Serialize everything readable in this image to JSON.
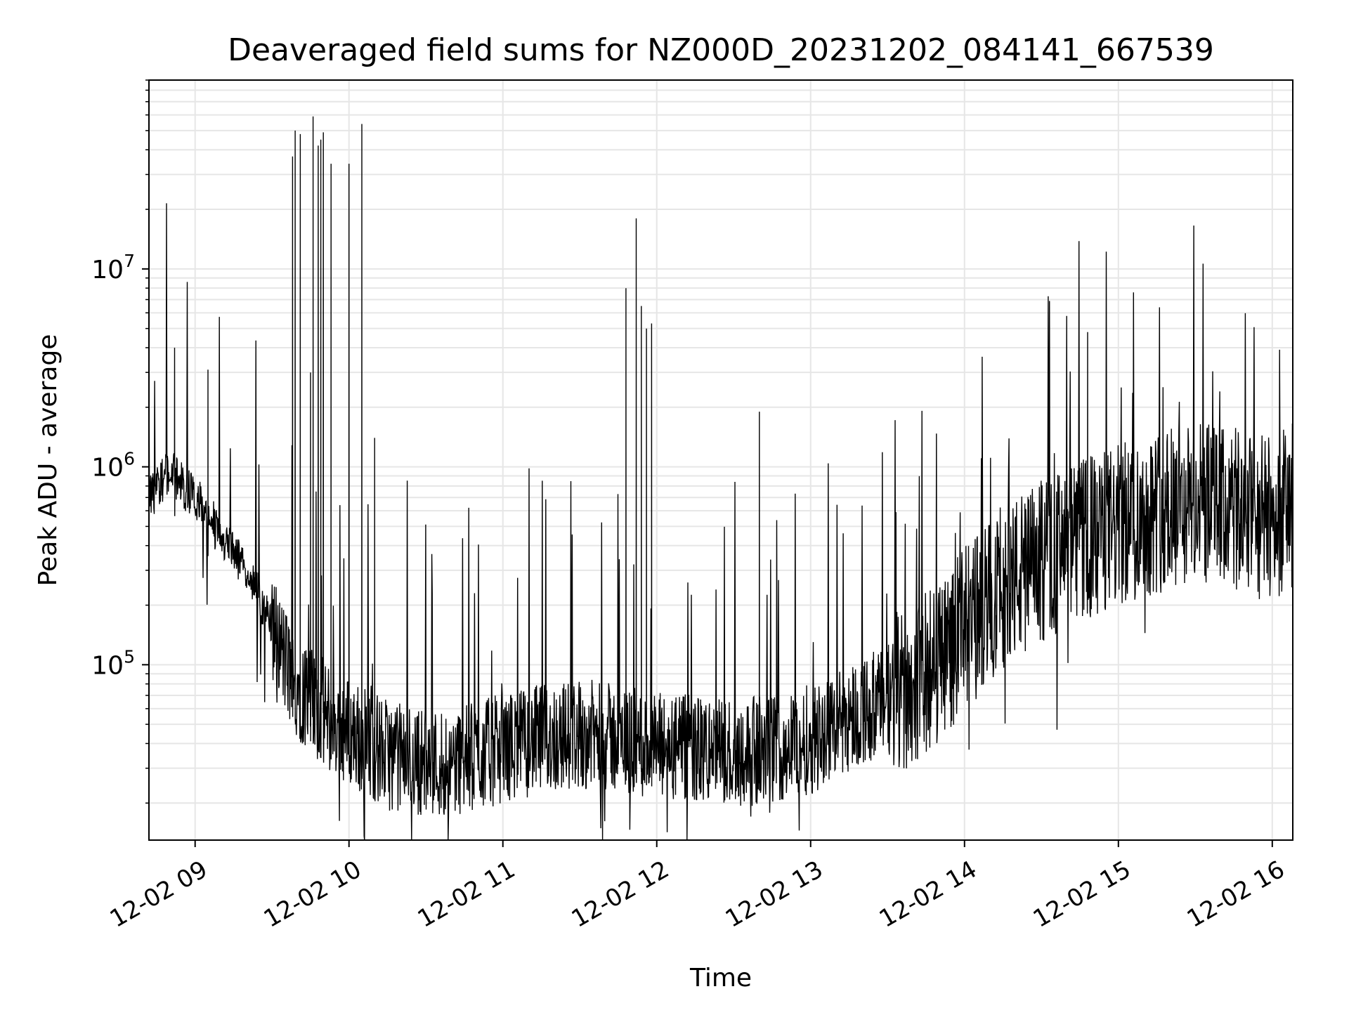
{
  "chart_data": {
    "type": "line",
    "title": "Deaveraged field sums for NZ000D_20231202_084141_667539",
    "xlabel": "Time",
    "ylabel": "Peak ADU - average",
    "y_scale": "log",
    "ylim": [
      13000,
      90000000
    ],
    "xlim": [
      "12-02 08:42",
      "12-02 16:08"
    ],
    "x_ticks": [
      "12-02 09",
      "12-02 10",
      "12-02 11",
      "12-02 12",
      "12-02 13",
      "12-02 14",
      "12-02 15",
      "12-02 16"
    ],
    "y_ticks": [
      {
        "base": "10",
        "exp": "5",
        "value": 100000
      },
      {
        "base": "10",
        "exp": "6",
        "value": 1000000
      },
      {
        "base": "10",
        "exp": "7",
        "value": 10000000
      }
    ],
    "grid": true,
    "line_color": "#000000",
    "series": [
      {
        "x": [
          "12-02 08:42",
          "12-02 08:50",
          "12-02 09:00",
          "12-02 09:10",
          "12-02 09:20",
          "12-02 09:30",
          "12-02 09:37",
          "12-02 09:45",
          "12-02 09:55",
          "12-02 10:05",
          "12-02 10:15",
          "12-02 10:25",
          "12-02 10:35",
          "12-02 10:45",
          "12-02 11:00",
          "12-02 11:15",
          "12-02 11:30",
          "12-02 11:45",
          "12-02 12:00",
          "12-02 12:15",
          "12-02 12:30",
          "12-02 12:45",
          "12-02 13:00",
          "12-02 13:15",
          "12-02 13:30",
          "12-02 13:45",
          "12-02 14:00",
          "12-02 14:15",
          "12-02 14:30",
          "12-02 14:45",
          "12-02 15:00",
          "12-02 15:15",
          "12-02 15:30",
          "12-02 15:45",
          "12-02 16:00",
          "12-02 16:08"
        ],
        "values": [
          700000,
          950000,
          700000,
          450000,
          300000,
          160000,
          90000,
          65000,
          50000,
          42000,
          35000,
          33000,
          32000,
          33000,
          38000,
          42000,
          45000,
          42000,
          38000,
          37000,
          36000,
          37000,
          42000,
          55000,
          65000,
          90000,
          150000,
          250000,
          330000,
          420000,
          500000,
          600000,
          650000,
          600000,
          550000,
          650000
        ]
      }
    ],
    "spikes": [
      {
        "x": "12-02 08:52",
        "value": 4000000
      },
      {
        "x": "12-02 09:05",
        "value": 3100000
      },
      {
        "x": "12-02 09:38",
        "value": 37000000
      },
      {
        "x": "12-02 09:39",
        "value": 50000000
      },
      {
        "x": "12-02 09:41",
        "value": 48000000
      },
      {
        "x": "12-02 09:45",
        "value": 3000000
      },
      {
        "x": "12-02 09:46",
        "value": 59000000
      },
      {
        "x": "12-02 09:48",
        "value": 42000000
      },
      {
        "x": "12-02 09:49",
        "value": 45000000
      },
      {
        "x": "12-02 09:50",
        "value": 49000000
      },
      {
        "x": "12-02 09:53",
        "value": 34000000
      },
      {
        "x": "12-02 10:00",
        "value": 34000000
      },
      {
        "x": "12-02 10:05",
        "value": 54000000
      },
      {
        "x": "12-02 10:10",
        "value": 1400000
      },
      {
        "x": "12-02 11:48",
        "value": 8000000
      },
      {
        "x": "12-02 11:52",
        "value": 18000000
      },
      {
        "x": "12-02 11:54",
        "value": 6500000
      },
      {
        "x": "12-02 11:56",
        "value": 5000000
      },
      {
        "x": "12-02 11:58",
        "value": 5300000
      },
      {
        "x": "12-02 12:40",
        "value": 1900000
      },
      {
        "x": "12-02 14:48",
        "value": 4800000
      }
    ]
  }
}
